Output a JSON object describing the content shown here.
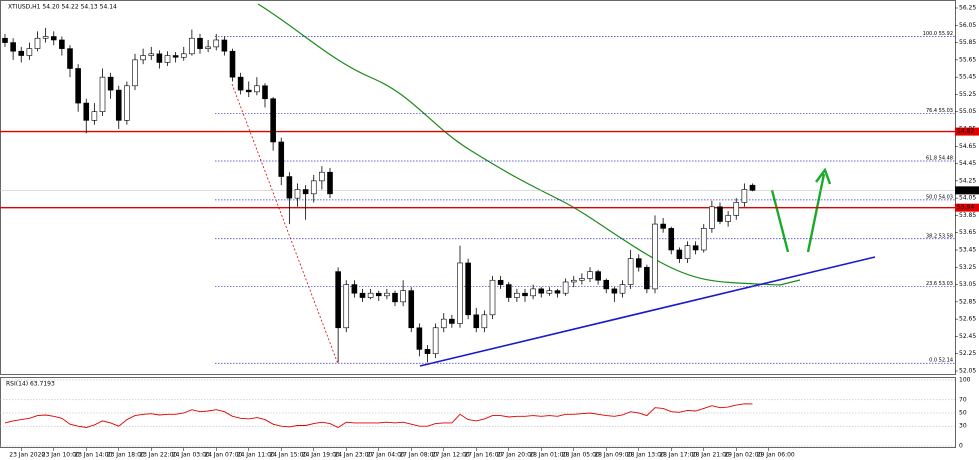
{
  "chart_data": {
    "type": "candlestick",
    "title": "XTIUSD,H1 54.20 54.22 54.13 54.14",
    "up_color": "#ffffff",
    "down_color": "#000000",
    "candles": [
      [
        55.9,
        55.95,
        55.8,
        55.85
      ],
      [
        55.85,
        55.9,
        55.65,
        55.75
      ],
      [
        55.75,
        55.8,
        55.62,
        55.7
      ],
      [
        55.7,
        55.85,
        55.65,
        55.78
      ],
      [
        55.78,
        55.98,
        55.75,
        55.9
      ],
      [
        55.9,
        56.02,
        55.85,
        55.92
      ],
      [
        55.92,
        55.98,
        55.82,
        55.88
      ],
      [
        55.88,
        55.92,
        55.7,
        55.78
      ],
      [
        55.78,
        55.82,
        55.45,
        55.55
      ],
      [
        55.55,
        55.6,
        55.05,
        55.15
      ],
      [
        55.15,
        55.2,
        54.8,
        54.95
      ],
      [
        54.95,
        55.15,
        54.9,
        55.05
      ],
      [
        55.05,
        55.55,
        55.0,
        55.45
      ],
      [
        55.45,
        55.5,
        55.2,
        55.3
      ],
      [
        55.3,
        55.35,
        54.85,
        54.95
      ],
      [
        54.95,
        55.4,
        54.9,
        55.35
      ],
      [
        55.35,
        55.72,
        55.3,
        55.65
      ],
      [
        55.65,
        55.78,
        55.6,
        55.7
      ],
      [
        55.7,
        55.8,
        55.65,
        55.72
      ],
      [
        55.72,
        55.76,
        55.55,
        55.62
      ],
      [
        55.62,
        55.75,
        55.58,
        55.7
      ],
      [
        55.7,
        55.74,
        55.62,
        55.68
      ],
      [
        55.68,
        55.8,
        55.64,
        55.72
      ],
      [
        55.72,
        56.0,
        55.7,
        55.9
      ],
      [
        55.9,
        55.95,
        55.72,
        55.78
      ],
      [
        55.78,
        55.88,
        55.74,
        55.8
      ],
      [
        55.8,
        55.95,
        55.76,
        55.88
      ],
      [
        55.88,
        55.92,
        55.7,
        55.75
      ],
      [
        55.75,
        55.78,
        55.4,
        55.45
      ],
      [
        55.45,
        55.5,
        55.25,
        55.3
      ],
      [
        55.3,
        55.4,
        55.22,
        55.28
      ],
      [
        55.28,
        55.45,
        55.24,
        55.35
      ],
      [
        55.35,
        55.38,
        55.1,
        55.2
      ],
      [
        55.2,
        55.22,
        54.6,
        54.7
      ],
      [
        54.7,
        54.75,
        54.2,
        54.3
      ],
      [
        54.3,
        54.35,
        53.75,
        54.05
      ],
      [
        54.05,
        54.22,
        53.95,
        54.15
      ],
      [
        54.15,
        54.2,
        53.8,
        54.1
      ],
      [
        54.1,
        54.32,
        54.0,
        54.25
      ],
      [
        54.25,
        54.42,
        54.15,
        54.35
      ],
      [
        54.35,
        54.4,
        54.05,
        54.1
      ],
      [
        53.2,
        53.25,
        52.15,
        52.55
      ],
      [
        52.55,
        53.1,
        52.5,
        53.05
      ],
      [
        53.05,
        53.1,
        52.9,
        52.95
      ],
      [
        52.95,
        53.0,
        52.85,
        52.9
      ],
      [
        52.9,
        53.0,
        52.88,
        52.95
      ],
      [
        52.95,
        52.98,
        52.86,
        52.92
      ],
      [
        52.92,
        53.0,
        52.88,
        52.95
      ],
      [
        52.95,
        52.98,
        52.8,
        52.85
      ],
      [
        52.85,
        53.1,
        52.8,
        52.98
      ],
      [
        52.98,
        53.02,
        52.5,
        52.55
      ],
      [
        52.55,
        52.6,
        52.22,
        52.3
      ],
      [
        52.3,
        52.35,
        52.15,
        52.25
      ],
      [
        52.25,
        52.6,
        52.2,
        52.55
      ],
      [
        52.55,
        52.72,
        52.5,
        52.65
      ],
      [
        52.65,
        52.7,
        52.55,
        52.6
      ],
      [
        52.6,
        53.5,
        52.55,
        53.3
      ],
      [
        53.3,
        53.35,
        52.65,
        52.7
      ],
      [
        52.7,
        52.78,
        52.5,
        52.55
      ],
      [
        52.55,
        52.75,
        52.5,
        52.7
      ],
      [
        52.7,
        53.15,
        52.65,
        53.1
      ],
      [
        53.1,
        53.15,
        53.0,
        53.05
      ],
      [
        53.05,
        53.08,
        52.85,
        52.9
      ],
      [
        52.9,
        53.0,
        52.85,
        52.95
      ],
      [
        52.95,
        53.0,
        52.85,
        52.92
      ],
      [
        52.92,
        53.05,
        52.88,
        53.0
      ],
      [
        53.0,
        53.02,
        52.9,
        52.95
      ],
      [
        52.95,
        53.02,
        52.92,
        52.98
      ],
      [
        52.98,
        53.0,
        52.9,
        52.95
      ],
      [
        52.95,
        53.12,
        52.92,
        53.08
      ],
      [
        53.08,
        53.15,
        53.02,
        53.1
      ],
      [
        53.1,
        53.18,
        53.05,
        53.12
      ],
      [
        53.12,
        53.25,
        53.08,
        53.2
      ],
      [
        53.2,
        53.22,
        53.05,
        53.1
      ],
      [
        53.1,
        53.12,
        52.95,
        53.0
      ],
      [
        53.0,
        53.02,
        52.85,
        52.95
      ],
      [
        52.95,
        53.1,
        52.9,
        53.05
      ],
      [
        53.05,
        53.45,
        53.0,
        53.35
      ],
      [
        53.35,
        53.4,
        53.2,
        53.25
      ],
      [
        53.25,
        53.28,
        52.95,
        53.0
      ],
      [
        53.0,
        53.85,
        52.95,
        53.75
      ],
      [
        53.75,
        53.82,
        53.65,
        53.7
      ],
      [
        53.7,
        53.72,
        53.4,
        53.45
      ],
      [
        53.45,
        53.48,
        53.3,
        53.35
      ],
      [
        53.35,
        53.55,
        53.3,
        53.5
      ],
      [
        53.5,
        53.55,
        53.4,
        53.45
      ],
      [
        53.45,
        53.75,
        53.42,
        53.7
      ],
      [
        53.7,
        54.02,
        53.65,
        53.95
      ],
      [
        53.95,
        54.0,
        53.75,
        53.78
      ],
      [
        53.78,
        53.9,
        53.72,
        53.85
      ],
      [
        53.85,
        54.05,
        53.8,
        54.0
      ],
      [
        54.0,
        54.22,
        53.95,
        54.15
      ],
      [
        54.2,
        54.22,
        54.13,
        54.14
      ]
    ],
    "time_labels": [
      "23 Jan 2020",
      "23 Jan 10:00",
      "23 Jan 14:00",
      "23 Jan 18:00",
      "23 Jan 22:00",
      "24 Jan 03:00",
      "24 Jan 07:00",
      "24 Jan 11:00",
      "24 Jan 15:00",
      "24 Jan 19:00",
      "24 Jan 23:00",
      "27 Jan 04:00",
      "27 Jan 08:00",
      "27 Jan 12:00",
      "27 Jan 16:00",
      "27 Jan 20:00",
      "28 Jan 01:00",
      "28 Jan 05:00",
      "28 Jan 09:00",
      "28 Jan 13:00",
      "28 Jan 17:00",
      "28 Jan 21:00",
      "29 Jan 02:00",
      "29 Jan 06:00"
    ],
    "ylim": [
      52.05,
      56.25
    ],
    "yticks": [
      56.25,
      56.05,
      55.85,
      55.65,
      55.45,
      55.25,
      55.05,
      54.85,
      54.65,
      54.45,
      54.25,
      54.05,
      53.85,
      53.65,
      53.45,
      53.25,
      53.05,
      52.85,
      52.65,
      52.45,
      52.25,
      52.05
    ],
    "fib_levels": [
      {
        "value": 55.92,
        "label": "100.0 55.92"
      },
      {
        "value": 55.03,
        "label": "76.4 55.03"
      },
      {
        "value": 54.48,
        "label": "61.8 54.48"
      },
      {
        "value": 54.03,
        "label": "50.0 54.03"
      },
      {
        "value": 53.58,
        "label": "38.2 53.58"
      },
      {
        "value": 53.03,
        "label": "23.6 53.03"
      },
      {
        "value": 52.14,
        "label": "0.0 52.14"
      }
    ],
    "fib_color": "#3030c0",
    "lines": [
      {
        "value": 54.82,
        "label": "54.82",
        "color": "#e00000"
      },
      {
        "value": 53.94,
        "label": "53.94",
        "color": "#e00000"
      },
      {
        "value": 54.14,
        "label": "54.14",
        "color": "#000000"
      }
    ],
    "rsi": {
      "label": "RSI(14) 63.7193",
      "color": "#e00000",
      "ylim": [
        0,
        100
      ],
      "yticks": [
        100,
        70,
        50,
        30,
        0
      ],
      "values": [
        35,
        38,
        40,
        42,
        46,
        47,
        45,
        42,
        33,
        30,
        28,
        32,
        38,
        35,
        30,
        40,
        46,
        48,
        49,
        47,
        48,
        48,
        50,
        55,
        52,
        53,
        55,
        52,
        45,
        42,
        41,
        43,
        40,
        33,
        30,
        29,
        31,
        31,
        34,
        36,
        34,
        28,
        36,
        35,
        35,
        35,
        35,
        36,
        35,
        36,
        33,
        30,
        30,
        34,
        35,
        35,
        48,
        40,
        38,
        41,
        46,
        46,
        44,
        45,
        45,
        46,
        45,
        46,
        45,
        48,
        48,
        49,
        50,
        48,
        46,
        45,
        47,
        52,
        50,
        46,
        58,
        57,
        52,
        51,
        54,
        53,
        57,
        61,
        58,
        59,
        62,
        64,
        63.7193
      ]
    }
  }
}
